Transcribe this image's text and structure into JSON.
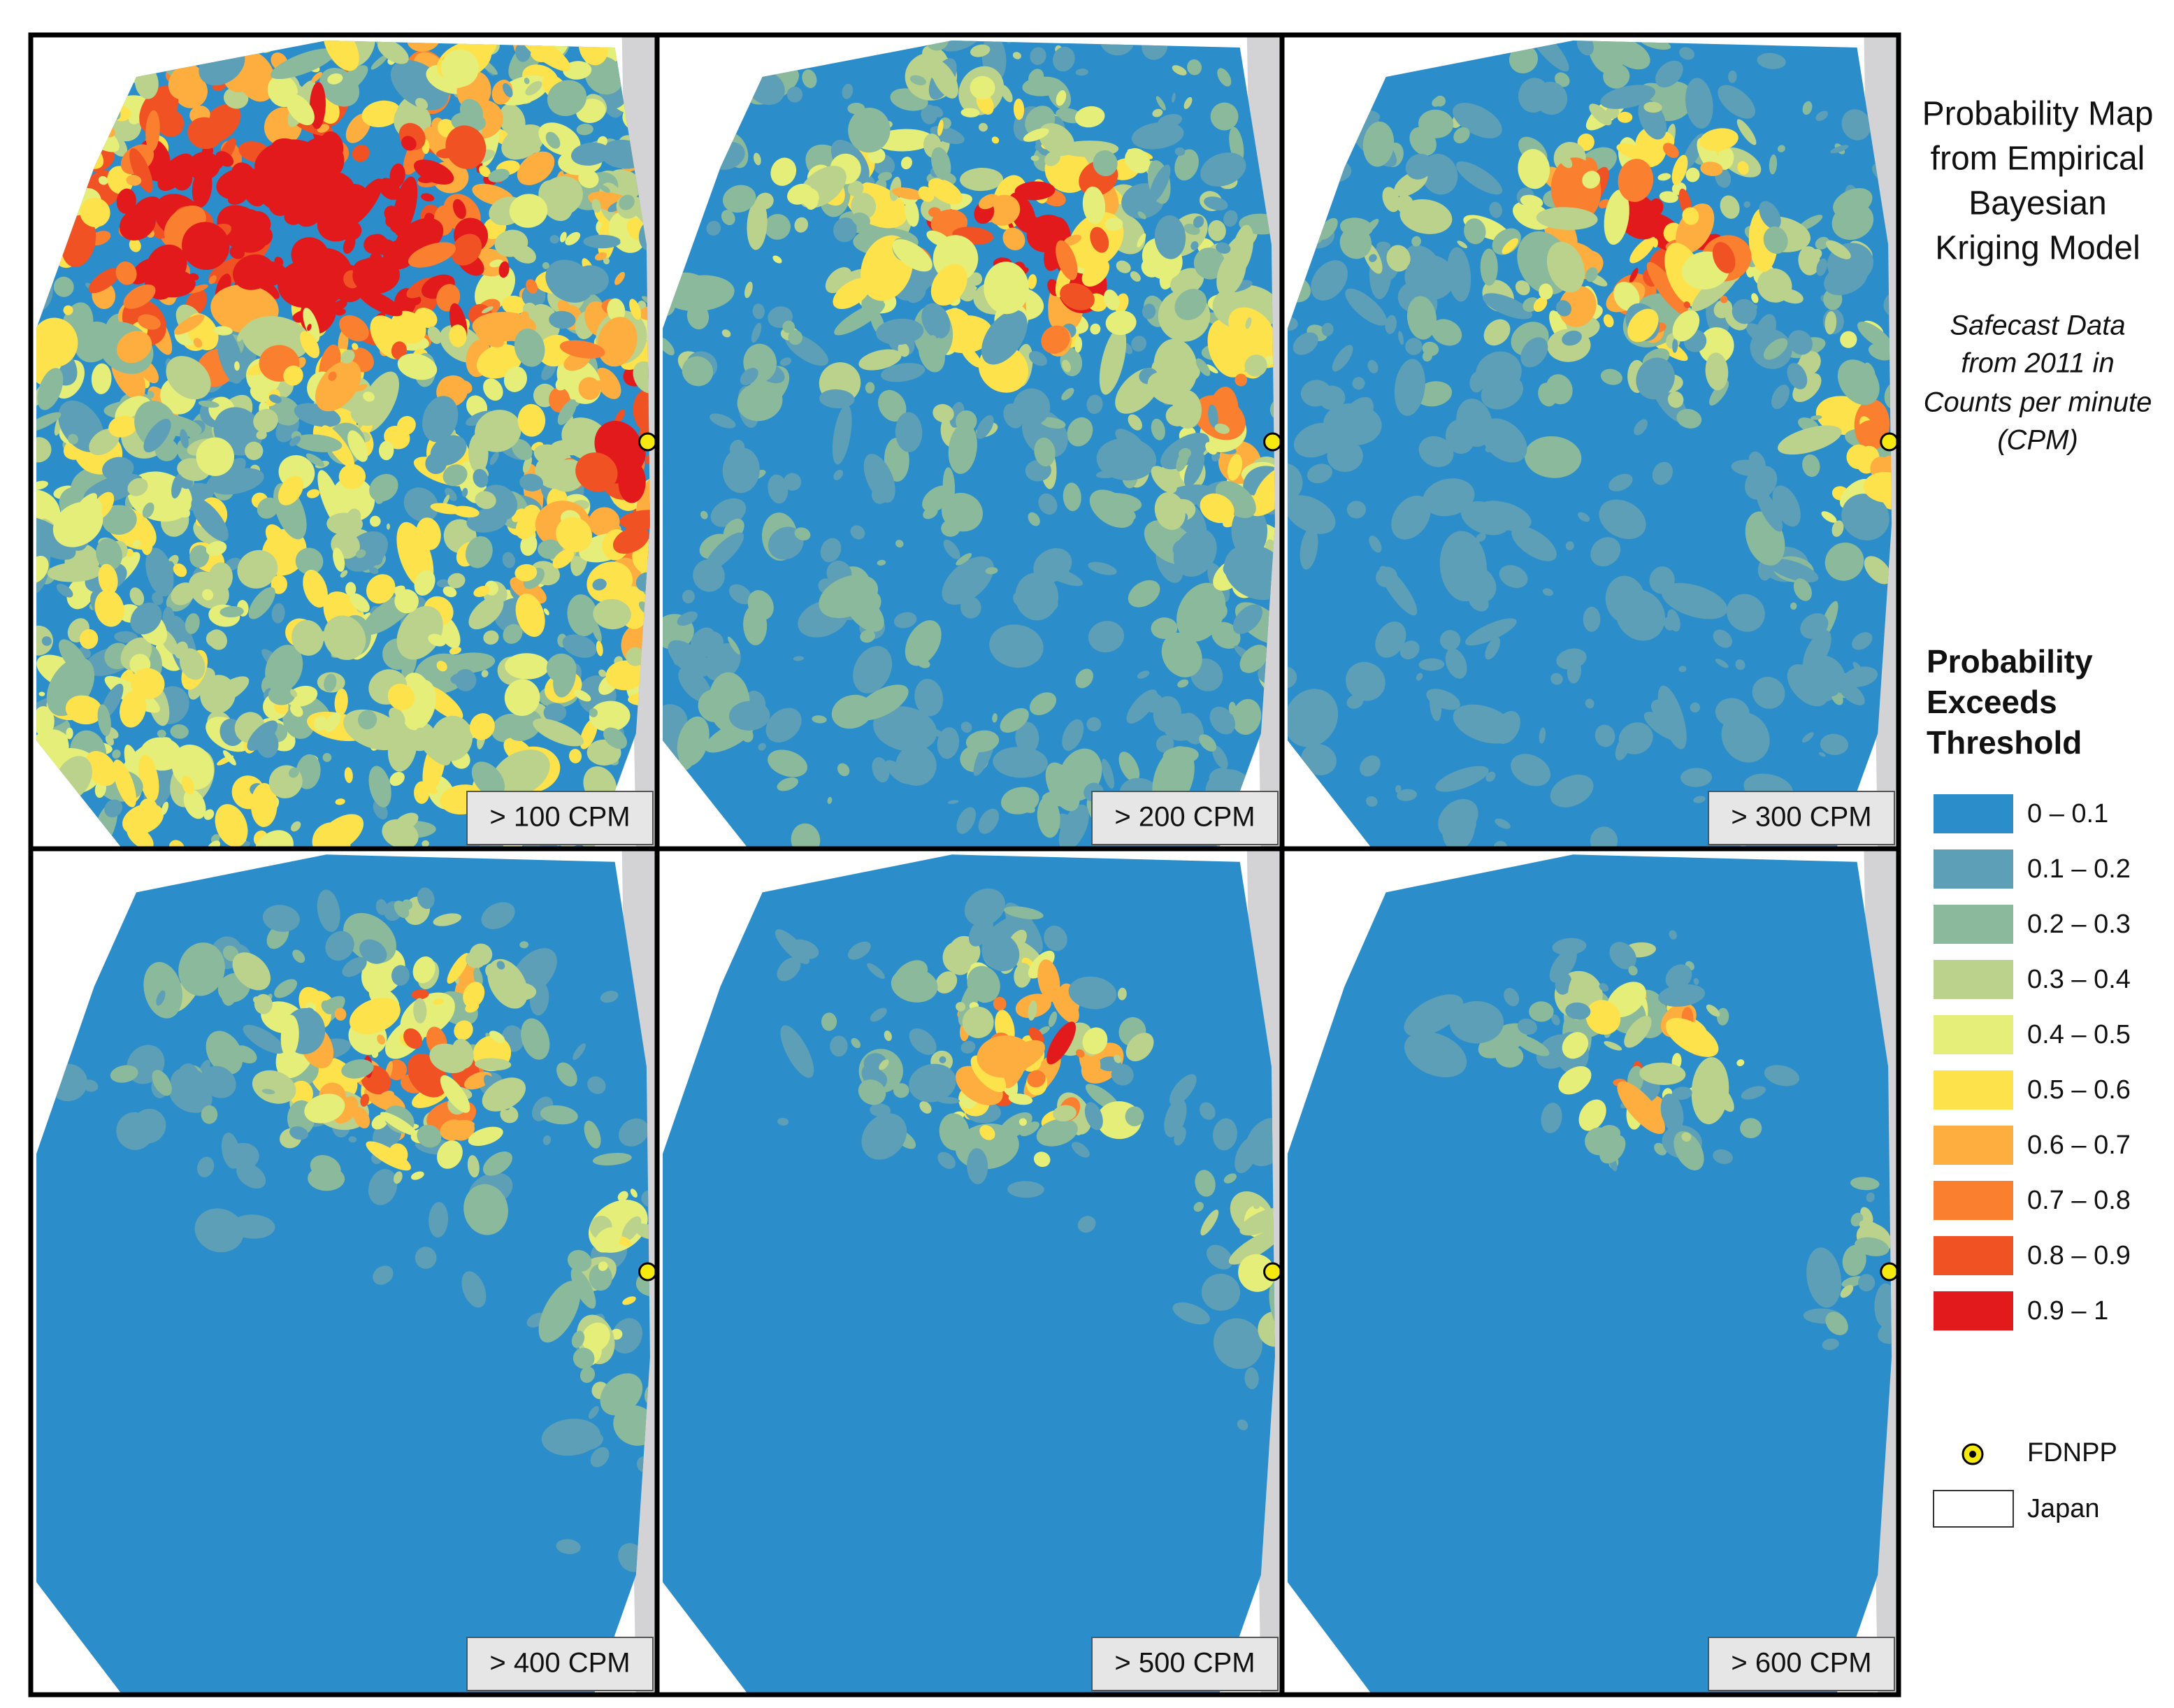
{
  "title_lines": [
    "Probability Map",
    "from Empirical",
    "Bayesian",
    "Kriging Model"
  ],
  "subtitle_lines": [
    "Safecast Data",
    "from 2011 in",
    "Counts per minute",
    "(CPM)"
  ],
  "panels": [
    {
      "label": "> 100 CPM"
    },
    {
      "label": "> 200 CPM"
    },
    {
      "label": "> 300 CPM"
    },
    {
      "label": "> 400 CPM"
    },
    {
      "label": "> 500 CPM"
    },
    {
      "label": "> 600 CPM"
    }
  ],
  "legend": {
    "title_lines": [
      "Probability",
      "Exceeds",
      "Threshold"
    ],
    "items": [
      {
        "label": "0 – 0.1",
        "color": "#2b8ecb"
      },
      {
        "label": "0.1 – 0.2",
        "color": "#5d9fb6"
      },
      {
        "label": "0.2 – 0.3",
        "color": "#8bb99c"
      },
      {
        "label": "0.3 – 0.4",
        "color": "#bad28b"
      },
      {
        "label": "0.4 – 0.5",
        "color": "#e4ee78"
      },
      {
        "label": "0.5 – 0.6",
        "color": "#fde24c"
      },
      {
        "label": "0.6 – 0.7",
        "color": "#fdae3e"
      },
      {
        "label": "0.7 – 0.8",
        "color": "#fa7f2f"
      },
      {
        "label": "0.8 – 0.9",
        "color": "#f05223"
      },
      {
        "label": "0.9 – 1",
        "color": "#e31a1c"
      }
    ],
    "symbols": [
      {
        "label": "FDNPP"
      },
      {
        "label": "Japan"
      }
    ]
  }
}
